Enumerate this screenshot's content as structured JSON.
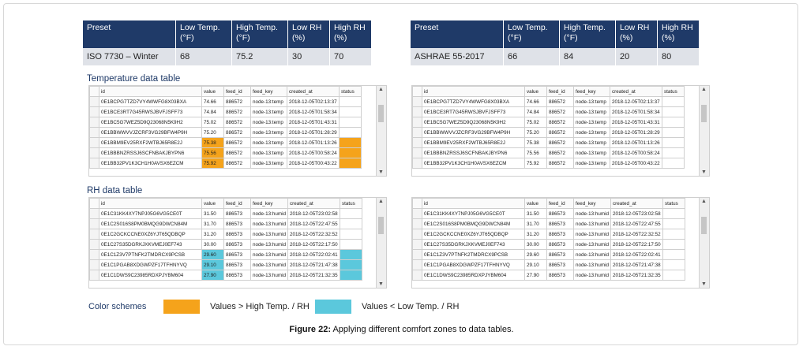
{
  "preset_left": {
    "headers": [
      "Preset",
      "Low Temp. (°F)",
      "High Temp. (°F)",
      "Low RH (%)",
      "High RH (%)"
    ],
    "values": [
      "ISO 7730 – Winter",
      "68",
      "75.2",
      "30",
      "70"
    ]
  },
  "preset_right": {
    "headers": [
      "Preset",
      "Low Temp. (°F)",
      "High Temp. (°F)",
      "Low RH (%)",
      "High RH (%)"
    ],
    "values": [
      "ASHRAE 55-2017",
      "66",
      "84",
      "20",
      "80"
    ]
  },
  "section_temp": "Temperature data table",
  "section_rh": "RH data table",
  "columns": [
    "id",
    "value",
    "feed_id",
    "feed_key",
    "created_at",
    "status"
  ],
  "temp_rows": [
    [
      "0E1BCPG7TZD7VY4WWFG8X03BXA",
      "74.66",
      "886572",
      "node-13:temp",
      "2018-12-05T02:13:37"
    ],
    [
      "0E1BCE3RT7G45RWSJBVFJSFF73",
      "74.84",
      "886572",
      "node-13:temp",
      "2018-12-05T01:58:34"
    ],
    [
      "0E1BC5G7WEZ5D9Q23068N5K9H2",
      "75.02",
      "886572",
      "node-13:temp",
      "2018-12-05T01:43:31"
    ],
    [
      "0E1BBWWVVJZCRF3VG29BFW4P9H",
      "75.20",
      "886572",
      "node-13:temp",
      "2018-12-05T01:28:29"
    ],
    [
      "0E1BBM9EV25RXF2WTBJ65R8E2J",
      "75.38",
      "886572",
      "node-13:temp",
      "2018-12-05T01:13:26"
    ],
    [
      "0E1BBBNZRSSJ6SCFNBAKJBYPN6",
      "75.56",
      "886572",
      "node-13:temp",
      "2018-12-05T00:58:24"
    ],
    [
      "0E1BB32PV1K3CH1H0AVSX6EZCM",
      "75.92",
      "886572",
      "node-13:temp",
      "2018-12-05T00:43:22"
    ]
  ],
  "rh_rows": [
    [
      "0E1C31KK4XY7NPJ05G6VG5CE0T",
      "31.50",
      "886573",
      "node-13:humid",
      "2018-12-05T23:02:58"
    ],
    [
      "0E1C2S016S8PM0BMQG9DWCN84M",
      "31.70",
      "886573",
      "node-13:humid",
      "2018-12-05T22:47:55"
    ],
    [
      "0E1C2GCKCCNE0XZ6YJT65QDBQP",
      "31.20",
      "886573",
      "node-13:humid",
      "2018-12-05T22:32:52"
    ],
    [
      "0E1C27S35DGRKJXKVMEJ0EF743",
      "30.00",
      "886573",
      "node-13:humid",
      "2018-12-05T22:17:50"
    ],
    [
      "0E1C1Z3V7PTNFK2TMDRCX9PCSB",
      "29.60",
      "886573",
      "node-13:humid",
      "2018-12-05T22:02:41"
    ],
    [
      "0E1C1PGAB8XDGWPZF17TFHNYVQ",
      "29.10",
      "886573",
      "node-13:humid",
      "2018-12-05T21:47:38"
    ],
    [
      "0E1C1DWS9C23985RDXPJYBM604",
      "27.90",
      "886573",
      "node-13:humid",
      "2018-12-05T21:32:35"
    ]
  ],
  "highlight": {
    "left_temp_high_rows": [
      4,
      5,
      6
    ],
    "left_rh_low_rows": [
      4,
      5,
      6
    ]
  },
  "colors": {
    "header_navy": "#1f3a68",
    "high": "#f5a31b",
    "low": "#5bc8dc"
  },
  "legend": {
    "label": "Color schemes",
    "high_text": "Values > High Temp. / RH",
    "low_text": "Values < Low Temp. / RH"
  },
  "caption": {
    "bold": "Figure 22:",
    "text": " Applying different comfort zones to data tables."
  }
}
